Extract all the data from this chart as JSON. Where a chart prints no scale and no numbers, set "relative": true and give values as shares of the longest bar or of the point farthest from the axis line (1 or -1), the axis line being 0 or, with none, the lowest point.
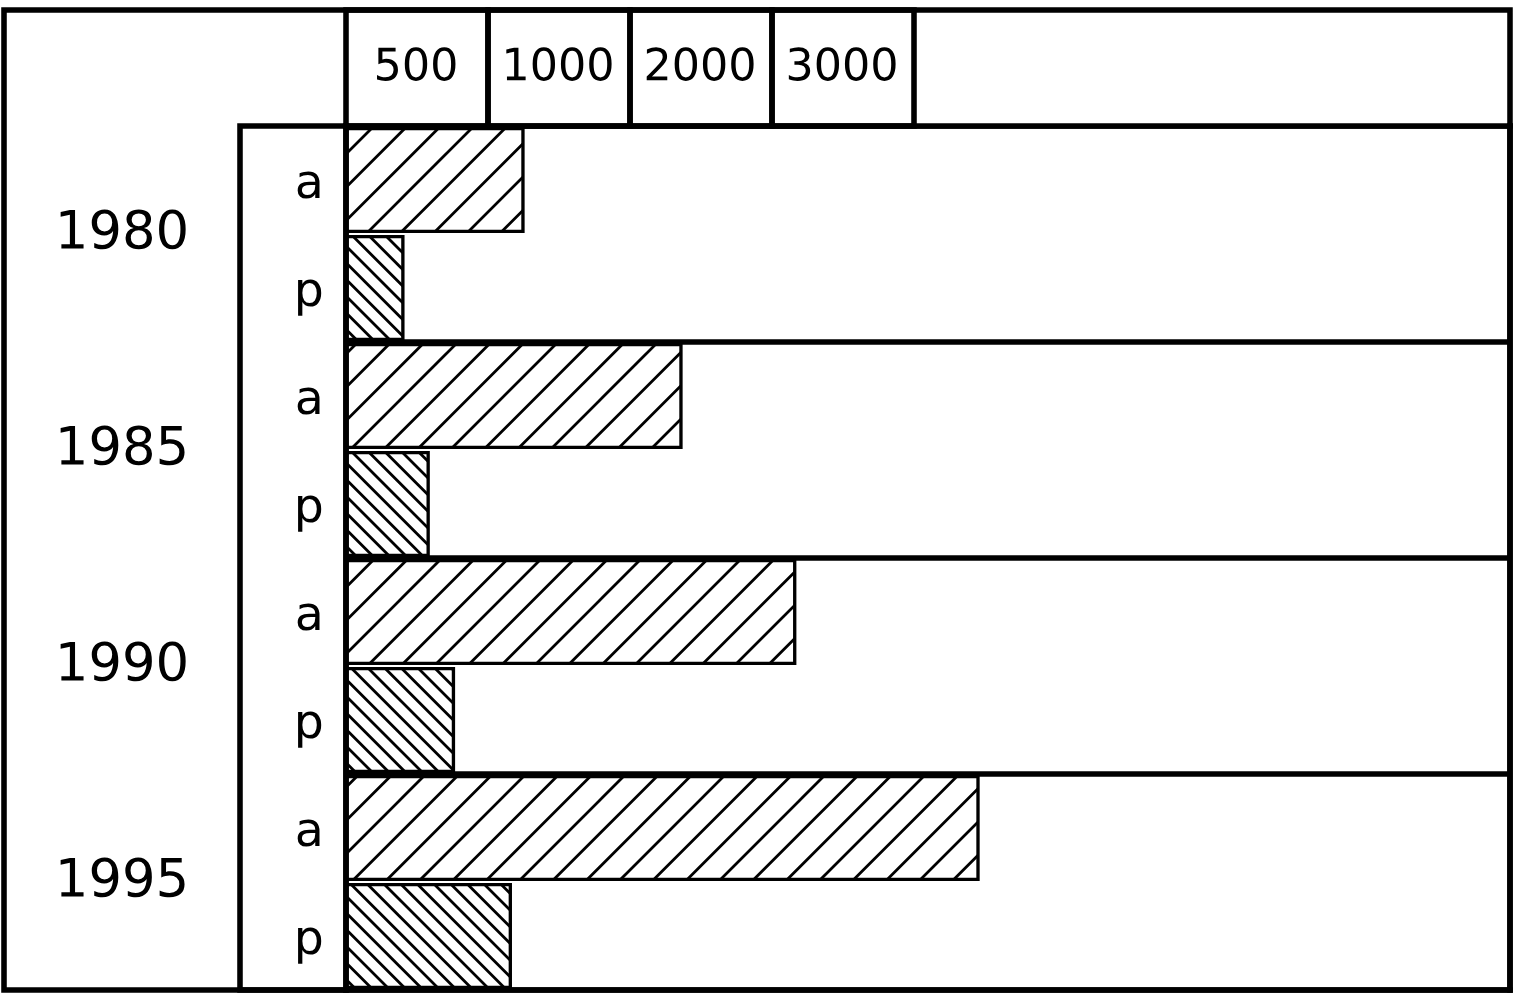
{
  "chart_data": {
    "type": "bar",
    "orientation": "horizontal",
    "relative": true,
    "categories": [
      "1980",
      "1985",
      "1990",
      "1995"
    ],
    "series": [
      {
        "name": "a",
        "color": "#000000",
        "values": [
          0.28,
          0.53,
          0.71,
          1.0
        ]
      },
      {
        "name": "p",
        "color": "#000000",
        "values": [
          0.09,
          0.13,
          0.17,
          0.26
        ]
      }
    ],
    "annotations": [
      "500",
      "1000",
      "2000",
      "3000"
    ],
    "grid": false
  }
}
